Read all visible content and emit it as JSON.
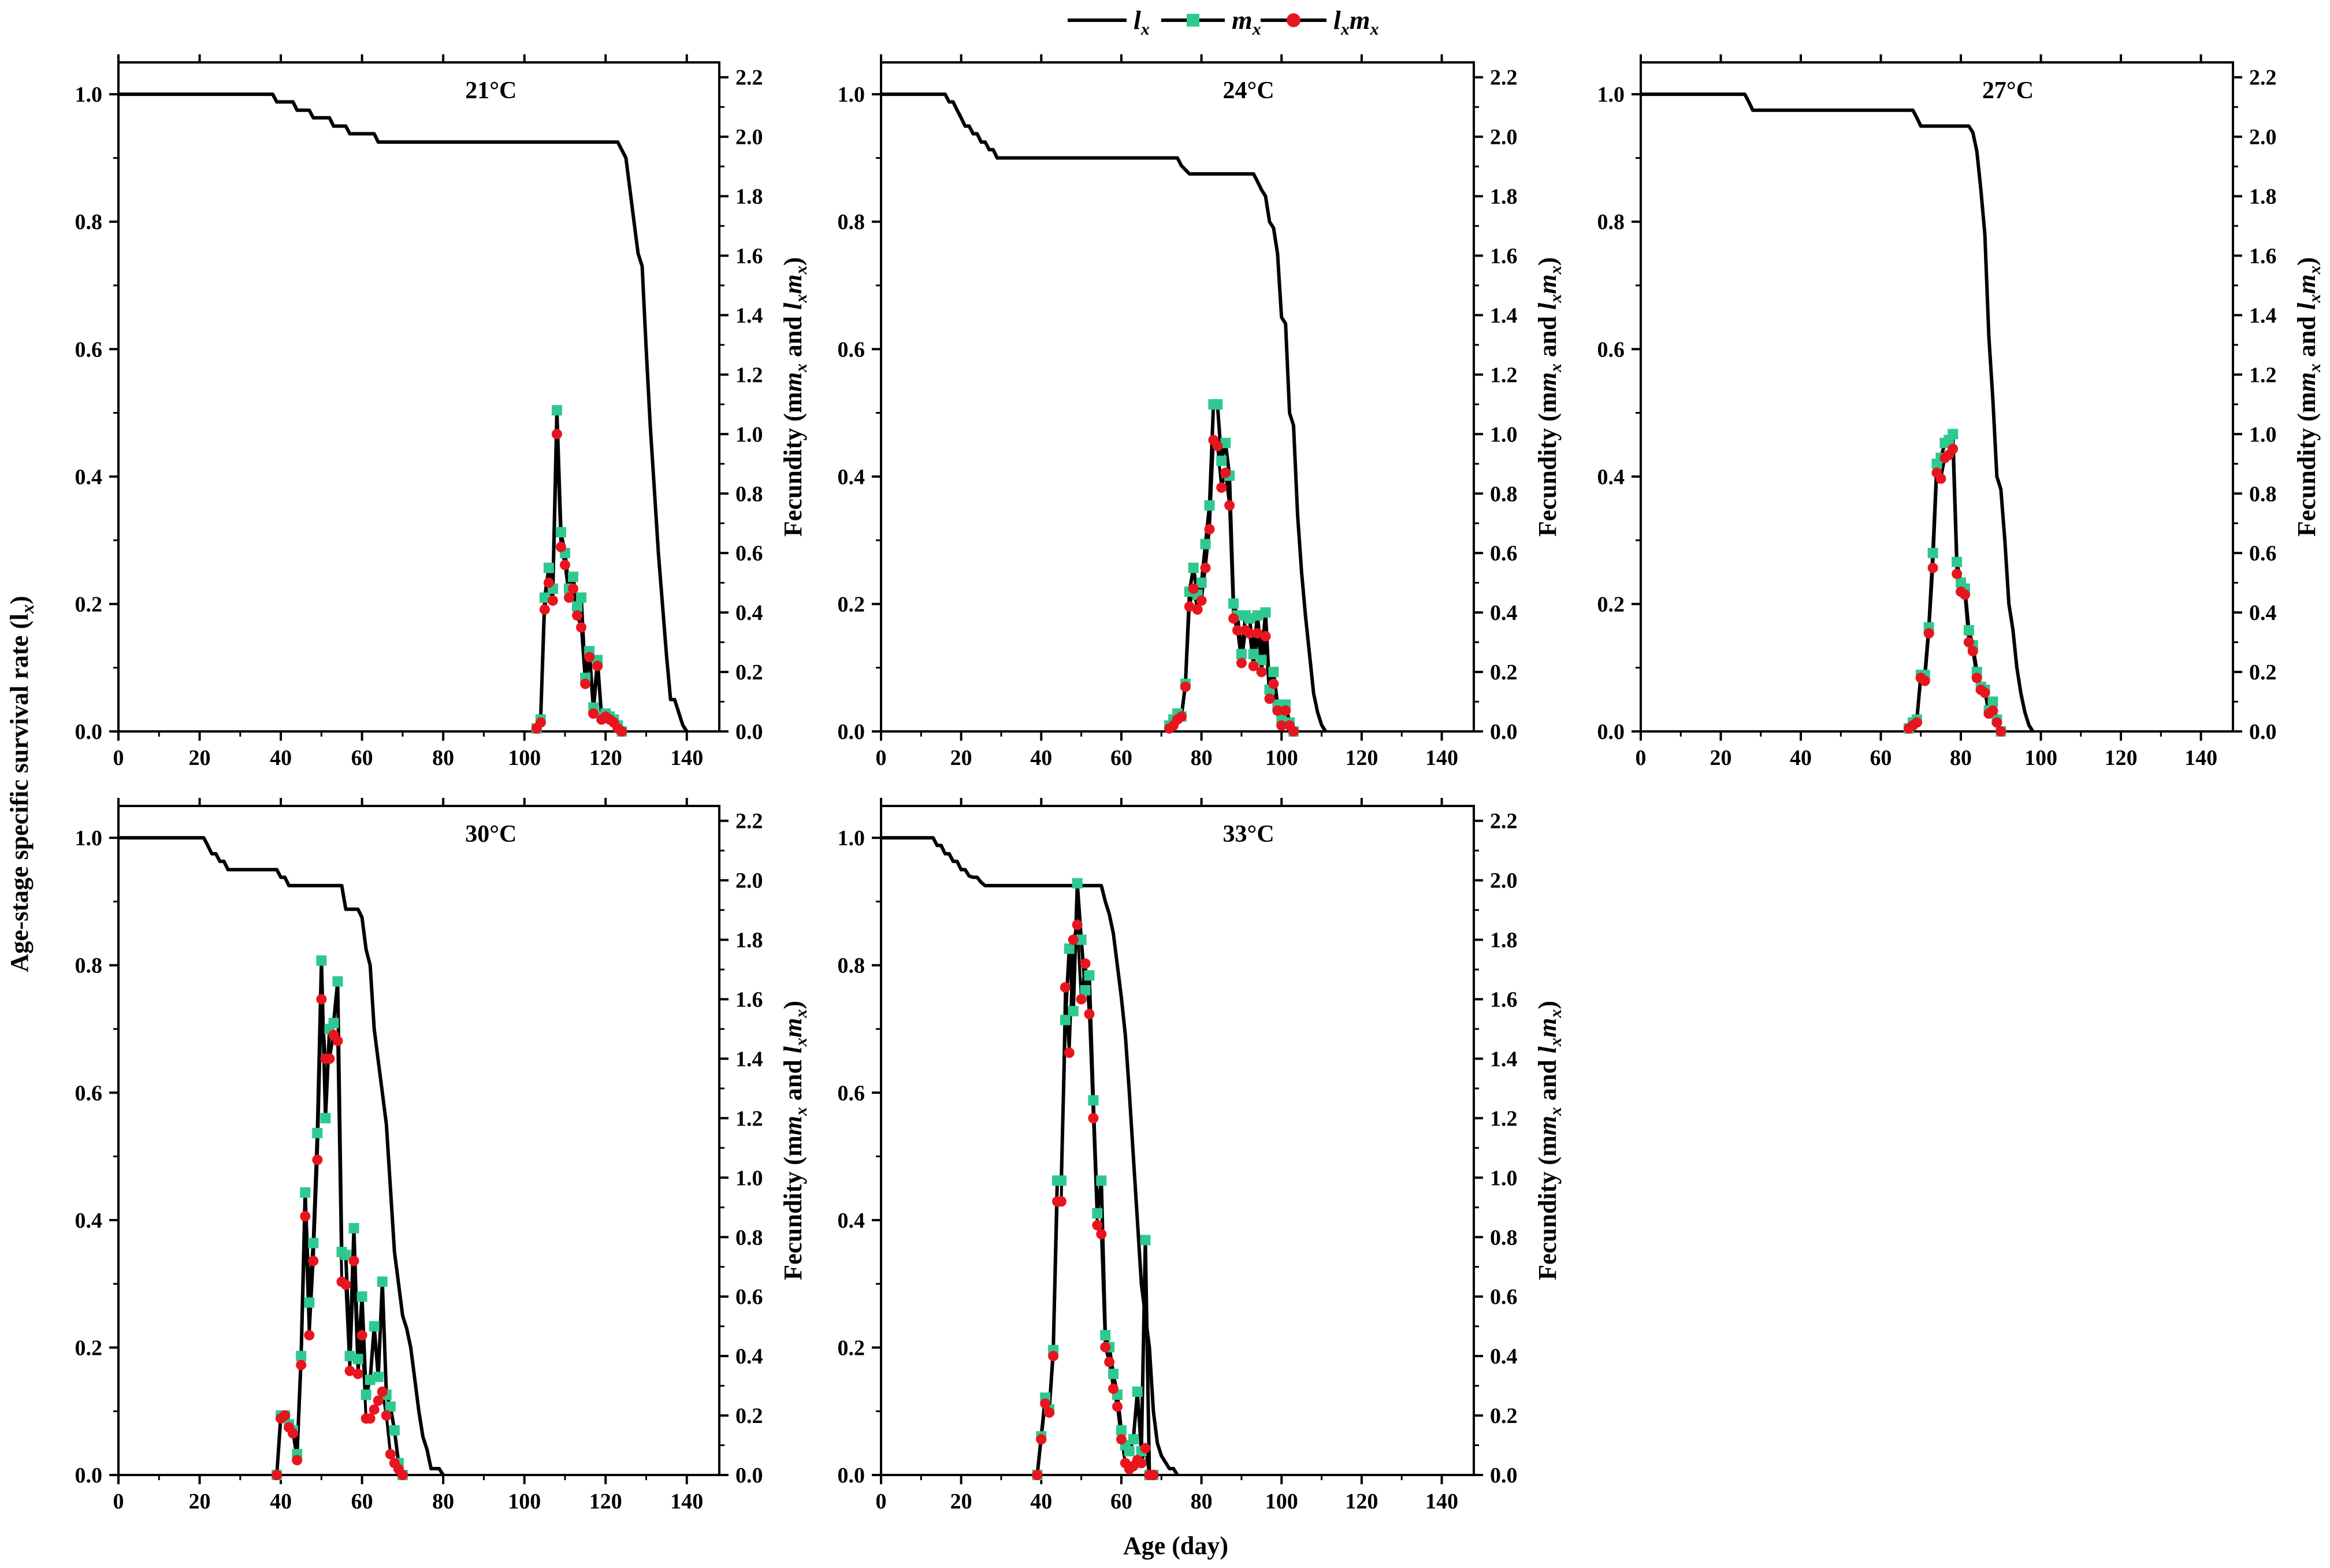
{
  "figure": {
    "ylabel_left": "Age-stage specific survival rate (l",
    "ylabel_left_sub": "x",
    "ylabel_right": "Fecundity (m",
    "xlabel": "Age (day)",
    "legend": [
      {
        "name": "l",
        "sub": "x",
        "color": "#000000"
      },
      {
        "name": "m",
        "sub": "x",
        "color": "#2ec98f"
      },
      {
        "name": "l",
        "sub": "x",
        "name2": "m",
        "sub2": "x",
        "color": "#e8141e"
      }
    ],
    "x_ticks": [
      0,
      20,
      40,
      60,
      80,
      100,
      120,
      140
    ],
    "y_left_ticks": [
      "0.0",
      "0.2",
      "0.4",
      "0.6",
      "0.8",
      "1.0"
    ],
    "y_right_ticks": [
      "0.0",
      "0.2",
      "0.4",
      "0.6",
      "0.8",
      "1.0",
      "1.2",
      "1.4",
      "1.6",
      "1.8",
      "2.0",
      "2.2"
    ],
    "colors": {
      "lx": "#000000",
      "mx": "#2ec98f",
      "lxmx": "#e8141e"
    }
  },
  "chart_data": [
    {
      "type": "line",
      "title": "21°C",
      "xlim": [
        0,
        148
      ],
      "ylim_left": [
        0,
        1.05
      ],
      "ylim_right": [
        0,
        2.25
      ],
      "series": [
        {
          "name": "lx",
          "x": [
            0,
            38,
            39,
            43,
            44,
            47,
            48,
            52,
            53,
            56,
            57,
            63,
            64,
            66,
            67,
            123,
            125,
            126,
            127,
            128,
            129,
            130,
            131,
            132,
            133,
            134,
            135,
            136,
            137,
            138,
            139,
            140
          ],
          "values": [
            1,
            1,
            0.988,
            0.988,
            0.975,
            0.975,
            0.963,
            0.963,
            0.95,
            0.95,
            0.938,
            0.938,
            0.925,
            0.925,
            0.925,
            0.925,
            0.9,
            0.85,
            0.8,
            0.75,
            0.73,
            0.6,
            0.48,
            0.38,
            0.28,
            0.2,
            0.12,
            0.05,
            0.05,
            0.03,
            0.01,
            0.0
          ]
        },
        {
          "name": "mx",
          "x": [
            103,
            104,
            105,
            106,
            107,
            108,
            109,
            110,
            111,
            112,
            113,
            114,
            115,
            116,
            117,
            118,
            119,
            120,
            121,
            122,
            123,
            124
          ],
          "values": [
            0.01,
            0.04,
            0.45,
            0.55,
            0.48,
            1.08,
            0.67,
            0.6,
            0.48,
            0.52,
            0.42,
            0.45,
            0.18,
            0.27,
            0.08,
            0.24,
            0.05,
            0.06,
            0.05,
            0.04,
            0.02,
            0.0
          ]
        },
        {
          "name": "lxmx",
          "x": [
            103,
            104,
            105,
            106,
            107,
            108,
            109,
            110,
            111,
            112,
            113,
            114,
            115,
            116,
            117,
            118,
            119,
            120,
            121,
            122,
            123,
            124
          ],
          "values": [
            0.01,
            0.03,
            0.41,
            0.5,
            0.44,
            1.0,
            0.62,
            0.56,
            0.45,
            0.48,
            0.39,
            0.35,
            0.16,
            0.25,
            0.06,
            0.22,
            0.04,
            0.05,
            0.04,
            0.03,
            0.01,
            0.0
          ]
        }
      ]
    },
    {
      "type": "line",
      "title": "24°C",
      "xlim": [
        0,
        148
      ],
      "ylim_left": [
        0,
        1.05
      ],
      "ylim_right": [
        0,
        2.25
      ],
      "series": [
        {
          "name": "lx",
          "x": [
            0,
            16,
            17,
            18,
            19,
            20,
            21,
            22,
            23,
            24,
            25,
            26,
            27,
            28,
            29,
            30,
            31,
            74,
            75,
            77,
            78,
            93,
            94,
            95,
            96,
            97,
            98,
            99,
            100,
            101,
            102,
            103,
            104,
            105,
            106,
            107,
            108,
            109,
            110,
            111
          ],
          "values": [
            1,
            1,
            0.988,
            0.988,
            0.975,
            0.963,
            0.95,
            0.95,
            0.938,
            0.938,
            0.925,
            0.925,
            0.913,
            0.913,
            0.9,
            0.9,
            0.9,
            0.9,
            0.888,
            0.875,
            0.875,
            0.875,
            0.863,
            0.85,
            0.84,
            0.8,
            0.79,
            0.75,
            0.65,
            0.64,
            0.5,
            0.48,
            0.34,
            0.25,
            0.18,
            0.12,
            0.06,
            0.03,
            0.01,
            0.0
          ]
        },
        {
          "name": "mx",
          "x": [
            72,
            73,
            74,
            75,
            76,
            77,
            78,
            79,
            80,
            81,
            82,
            83,
            84,
            85,
            86,
            87,
            88,
            89,
            90,
            91,
            92,
            93,
            94,
            95,
            96,
            97,
            98,
            99,
            100,
            101,
            102,
            103
          ],
          "values": [
            0.02,
            0.04,
            0.06,
            0.05,
            0.16,
            0.47,
            0.55,
            0.46,
            0.5,
            0.63,
            0.76,
            1.1,
            1.1,
            0.91,
            0.97,
            0.86,
            0.43,
            0.39,
            0.26,
            0.39,
            0.38,
            0.26,
            0.39,
            0.24,
            0.4,
            0.14,
            0.2,
            0.09,
            0.04,
            0.09,
            0.03,
            0.0
          ]
        },
        {
          "name": "lxmx",
          "x": [
            72,
            73,
            74,
            75,
            76,
            77,
            78,
            79,
            80,
            81,
            82,
            83,
            84,
            85,
            86,
            87,
            88,
            89,
            90,
            91,
            92,
            93,
            94,
            95,
            96,
            97,
            98,
            99,
            100,
            101,
            102,
            103
          ],
          "values": [
            0.01,
            0.02,
            0.04,
            0.05,
            0.15,
            0.42,
            0.48,
            0.41,
            0.44,
            0.55,
            0.68,
            0.98,
            0.96,
            0.82,
            0.87,
            0.76,
            0.38,
            0.34,
            0.23,
            0.34,
            0.33,
            0.22,
            0.33,
            0.2,
            0.32,
            0.11,
            0.16,
            0.07,
            0.02,
            0.07,
            0.02,
            0.0
          ]
        }
      ]
    },
    {
      "type": "line",
      "title": "27°C",
      "xlim": [
        0,
        148
      ],
      "ylim_left": [
        0,
        1.05
      ],
      "ylim_right": [
        0,
        2.25
      ],
      "series": [
        {
          "name": "lx",
          "x": [
            0,
            26,
            27,
            28,
            68,
            69,
            70,
            73,
            74,
            82,
            83,
            84,
            85,
            86,
            87,
            88,
            89,
            90,
            91,
            92,
            93,
            94,
            95,
            96,
            97,
            98
          ],
          "values": [
            1,
            1,
            0.988,
            0.975,
            0.975,
            0.963,
            0.95,
            0.95,
            0.95,
            0.95,
            0.94,
            0.91,
            0.85,
            0.78,
            0.62,
            0.52,
            0.4,
            0.38,
            0.3,
            0.2,
            0.16,
            0.1,
            0.06,
            0.03,
            0.01,
            0.0
          ]
        },
        {
          "name": "mx",
          "x": [
            67,
            68,
            69,
            70,
            71,
            72,
            73,
            74,
            75,
            76,
            77,
            78,
            79,
            80,
            81,
            82,
            83,
            84,
            85,
            86,
            87,
            88,
            89,
            90
          ],
          "values": [
            0.01,
            0.03,
            0.04,
            0.19,
            0.19,
            0.35,
            0.6,
            0.9,
            0.92,
            0.97,
            0.98,
            1.0,
            0.57,
            0.5,
            0.48,
            0.34,
            0.29,
            0.2,
            0.15,
            0.14,
            0.07,
            0.1,
            0.04,
            0.0
          ]
        },
        {
          "name": "lxmx",
          "x": [
            67,
            68,
            69,
            70,
            71,
            72,
            73,
            74,
            75,
            76,
            77,
            78,
            79,
            80,
            81,
            82,
            83,
            84,
            85,
            86,
            87,
            88,
            89,
            90
          ],
          "values": [
            0.01,
            0.02,
            0.03,
            0.18,
            0.17,
            0.33,
            0.55,
            0.87,
            0.85,
            0.92,
            0.93,
            0.95,
            0.53,
            0.47,
            0.46,
            0.3,
            0.27,
            0.18,
            0.14,
            0.13,
            0.06,
            0.07,
            0.03,
            0.0
          ]
        }
      ]
    },
    {
      "type": "line",
      "title": "30°C",
      "xlim": [
        0,
        148
      ],
      "ylim_left": [
        0,
        1.05
      ],
      "ylim_right": [
        0,
        2.25
      ],
      "series": [
        {
          "name": "lx",
          "x": [
            0,
            21,
            22,
            23,
            24,
            25,
            26,
            27,
            28,
            39,
            40,
            41,
            42,
            43,
            44,
            45,
            46,
            47,
            48,
            49,
            50,
            51,
            52,
            53,
            54,
            55,
            56,
            57,
            58,
            59,
            60,
            61,
            62,
            63,
            64,
            65,
            66,
            67,
            68,
            69,
            70,
            71,
            72,
            73,
            74,
            75,
            76,
            77,
            78,
            79,
            80
          ],
          "values": [
            1,
            1,
            0.988,
            0.975,
            0.975,
            0.963,
            0.963,
            0.95,
            0.95,
            0.95,
            0.938,
            0.938,
            0.925,
            0.925,
            0.925,
            0.925,
            0.925,
            0.925,
            0.925,
            0.925,
            0.925,
            0.925,
            0.925,
            0.925,
            0.925,
            0.925,
            0.888,
            0.888,
            0.888,
            0.888,
            0.875,
            0.825,
            0.8,
            0.7,
            0.65,
            0.6,
            0.55,
            0.45,
            0.35,
            0.3,
            0.25,
            0.23,
            0.2,
            0.15,
            0.1,
            0.06,
            0.04,
            0.01,
            0.01,
            0.01,
            0.0
          ]
        },
        {
          "name": "mx",
          "x": [
            39,
            40,
            41,
            42,
            43,
            44,
            45,
            46,
            47,
            48,
            49,
            50,
            51,
            52,
            53,
            54,
            55,
            56,
            57,
            58,
            59,
            60,
            61,
            62,
            63,
            64,
            65,
            66,
            67,
            68,
            69,
            70
          ],
          "values": [
            0.0,
            0.2,
            0.2,
            0.17,
            0.15,
            0.07,
            0.4,
            0.95,
            0.58,
            0.78,
            1.15,
            1.73,
            1.2,
            1.5,
            1.52,
            1.66,
            0.75,
            0.74,
            0.4,
            0.83,
            0.39,
            0.6,
            0.27,
            0.32,
            0.5,
            0.33,
            0.65,
            0.27,
            0.23,
            0.15,
            0.04,
            0.0
          ]
        },
        {
          "name": "lxmx",
          "x": [
            39,
            40,
            41,
            42,
            43,
            44,
            45,
            46,
            47,
            48,
            49,
            50,
            51,
            52,
            53,
            54,
            55,
            56,
            57,
            58,
            59,
            60,
            61,
            62,
            63,
            64,
            65,
            66,
            67,
            68,
            69,
            70
          ],
          "values": [
            0.0,
            0.19,
            0.2,
            0.16,
            0.14,
            0.05,
            0.37,
            0.87,
            0.47,
            0.72,
            1.06,
            1.6,
            1.4,
            1.4,
            1.48,
            1.46,
            0.65,
            0.64,
            0.35,
            0.72,
            0.34,
            0.47,
            0.19,
            0.19,
            0.22,
            0.25,
            0.28,
            0.2,
            0.07,
            0.04,
            0.02,
            0.0
          ]
        }
      ]
    },
    {
      "type": "line",
      "title": "33°C",
      "xlim": [
        0,
        148
      ],
      "ylim_left": [
        0,
        1.05
      ],
      "ylim_right": [
        0,
        2.25
      ],
      "series": [
        {
          "name": "lx",
          "x": [
            0,
            13,
            14,
            15,
            16,
            17,
            18,
            19,
            20,
            21,
            22,
            23,
            24,
            25,
            26,
            27,
            28,
            29,
            30,
            55,
            56,
            57,
            58,
            59,
            60,
            61,
            62,
            63,
            64,
            65,
            66,
            67,
            68,
            69,
            70,
            71,
            72,
            73,
            74
          ],
          "values": [
            1,
            1,
            0.988,
            0.988,
            0.975,
            0.975,
            0.963,
            0.963,
            0.95,
            0.95,
            0.94,
            0.938,
            0.938,
            0.93,
            0.925,
            0.925,
            0.925,
            0.925,
            0.925,
            0.925,
            0.9,
            0.88,
            0.85,
            0.8,
            0.75,
            0.69,
            0.6,
            0.5,
            0.4,
            0.3,
            0.25,
            0.2,
            0.1,
            0.05,
            0.03,
            0.02,
            0.01,
            0.01,
            0.0
          ]
        },
        {
          "name": "mx",
          "x": [
            39,
            40,
            41,
            42,
            43,
            44,
            45,
            46,
            47,
            48,
            49,
            50,
            51,
            52,
            53,
            54,
            55,
            56,
            57,
            58,
            59,
            60,
            61,
            62,
            63,
            64,
            65,
            66,
            67,
            68
          ],
          "values": [
            0.0,
            0.13,
            0.26,
            0.22,
            0.42,
            0.99,
            0.99,
            1.53,
            1.77,
            1.56,
            1.99,
            1.8,
            1.63,
            1.68,
            1.26,
            0.88,
            0.99,
            0.47,
            0.43,
            0.34,
            0.27,
            0.15,
            0.1,
            0.08,
            0.12,
            0.28,
            0.08,
            0.79,
            0.0,
            0.0
          ]
        },
        {
          "name": "lxmx",
          "x": [
            39,
            40,
            41,
            42,
            43,
            44,
            45,
            46,
            47,
            48,
            49,
            50,
            51,
            52,
            53,
            54,
            55,
            56,
            57,
            58,
            59,
            60,
            61,
            62,
            63,
            64,
            65,
            66,
            67,
            68
          ],
          "values": [
            0.0,
            0.12,
            0.24,
            0.21,
            0.4,
            0.92,
            0.92,
            1.64,
            1.42,
            1.8,
            1.85,
            1.6,
            1.72,
            1.55,
            1.2,
            0.84,
            0.81,
            0.43,
            0.38,
            0.29,
            0.23,
            0.12,
            0.04,
            0.02,
            0.03,
            0.05,
            0.04,
            0.09,
            0.0,
            0.0
          ]
        }
      ]
    }
  ]
}
